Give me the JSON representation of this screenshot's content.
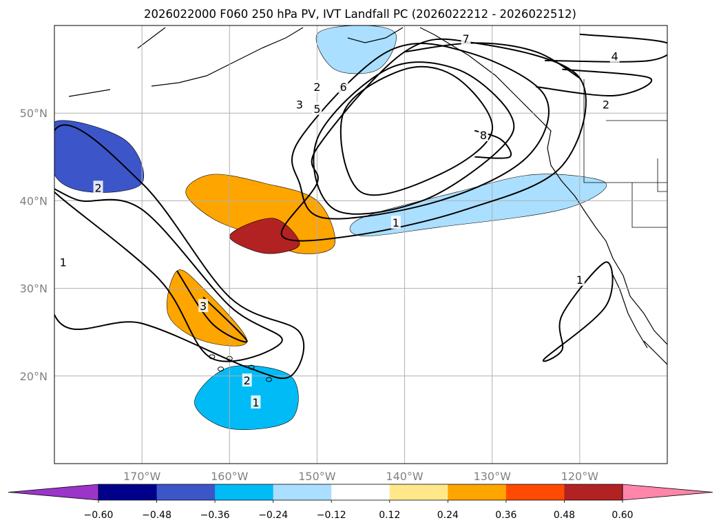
{
  "chart_data": {
    "type": "map-contour",
    "title": "2026022000 F060 250 hPa PV, IVT Landfall PC (2026022212 - 2026022512)",
    "lon_range": [
      -180,
      -110
    ],
    "lat_range": [
      10,
      60
    ],
    "lon_ticks": [
      -170,
      -160,
      -150,
      -140,
      -130,
      -120
    ],
    "lon_tick_labels": [
      "170°W",
      "160°W",
      "150°W",
      "140°W",
      "130°W",
      "120°W"
    ],
    "lat_ticks": [
      20,
      30,
      40,
      50
    ],
    "lat_tick_labels": [
      "20°N",
      "30°N",
      "40°N",
      "50°N"
    ],
    "grid": true,
    "colorbar": {
      "orientation": "horizontal",
      "extend": "both",
      "levels": [
        -0.6,
        -0.48,
        -0.36,
        -0.24,
        -0.12,
        0.12,
        0.24,
        0.36,
        0.48,
        0.6
      ],
      "tick_labels": [
        "−0.60",
        "−0.48",
        "−0.36",
        "−0.24",
        "−0.12",
        "0.12",
        "0.24",
        "0.36",
        "0.48",
        "0.60"
      ],
      "colors": [
        "#9b35c9",
        "#00008b",
        "#3c55c8",
        "#00bbf5",
        "#aadfff",
        "#ffffff",
        "#ffe88a",
        "#ffa500",
        "#ff4a00",
        "#b22222",
        "#ff85aa"
      ]
    },
    "shaded_features": [
      {
        "name": "northeast pacific positive max",
        "level": 0.24,
        "lon_lat": [
          [
            -156,
            42
          ],
          [
            -150,
            40
          ],
          [
            -148,
            35
          ],
          [
            -152,
            34
          ],
          [
            -157,
            36
          ],
          [
            -162,
            38
          ],
          [
            -165,
            41
          ],
          [
            -162,
            43
          ]
        ]
      },
      {
        "name": "northeast pacific positive core",
        "level": 0.48,
        "lon_lat": [
          [
            -155,
            38
          ],
          [
            -152,
            35
          ],
          [
            -156,
            34
          ],
          [
            -160,
            36
          ]
        ]
      },
      {
        "name": "jet-stream negative band",
        "level": -0.24,
        "lon_lat": [
          [
            -145,
            38
          ],
          [
            -134,
            41
          ],
          [
            -125,
            43
          ],
          [
            -117,
            42
          ],
          [
            -122,
            39
          ],
          [
            -136,
            37
          ],
          [
            -145,
            36
          ]
        ]
      },
      {
        "name": "gulf of alaska negative",
        "level": -0.24,
        "lon_lat": [
          [
            -150,
            59
          ],
          [
            -145,
            60
          ],
          [
            -141,
            59
          ],
          [
            -143,
            55
          ],
          [
            -148,
            55
          ]
        ]
      },
      {
        "name": "western negative",
        "level": -0.48,
        "lon_lat": [
          [
            -180,
            49
          ],
          [
            -172,
            47
          ],
          [
            -170,
            42
          ],
          [
            -176,
            41
          ],
          [
            -180,
            43
          ]
        ]
      },
      {
        "name": "hawaii negative",
        "level": -0.36,
        "lon_lat": [
          [
            -160,
            21
          ],
          [
            -153,
            20
          ],
          [
            -153,
            15
          ],
          [
            -160,
            14
          ],
          [
            -164,
            17
          ]
        ]
      },
      {
        "name": "subtropical positive",
        "level": 0.24,
        "lon_lat": [
          [
            -166,
            32
          ],
          [
            -163,
            30
          ],
          [
            -158,
            24
          ],
          [
            -163,
            24
          ],
          [
            -167,
            27
          ]
        ]
      }
    ],
    "contours": [
      {
        "label": "1",
        "lon_lat": [
          [
            -180,
            27
          ],
          [
            -170,
            26
          ],
          [
            -158,
            21
          ],
          [
            -153,
            20
          ],
          [
            -152,
            25
          ],
          [
            -160,
            29
          ],
          [
            -170,
            42
          ],
          [
            -180,
            48
          ]
        ]
      },
      {
        "label": "2",
        "lon_lat": [
          [
            -177,
            40
          ],
          [
            -170,
            39
          ],
          [
            -160,
            28
          ],
          [
            -154,
            24
          ],
          [
            -162,
            22
          ],
          [
            -168,
            31
          ],
          [
            -180,
            41
          ]
        ]
      },
      {
        "label": "3",
        "lon_lat": [
          [
            -166,
            32
          ],
          [
            -162,
            26
          ],
          [
            -158,
            24
          ],
          [
            -163,
            29
          ]
        ]
      },
      {
        "label": "1",
        "lon_lat": [
          [
            -150,
            46
          ],
          [
            -140,
            57
          ],
          [
            -132,
            58
          ],
          [
            -120,
            54
          ],
          [
            -122,
            44
          ],
          [
            -133,
            39
          ],
          [
            -146,
            36
          ],
          [
            -154,
            36
          ],
          [
            -150,
            42
          ]
        ]
      },
      {
        "label": "2",
        "lon_lat": [
          [
            -152,
            47
          ],
          [
            -142,
            57
          ],
          [
            -133,
            57
          ],
          [
            -124,
            52
          ],
          [
            -126,
            45
          ],
          [
            -136,
            40
          ],
          [
            -149,
            38
          ],
          [
            -152,
            42
          ]
        ]
      },
      {
        "label": "5",
        "lon_lat": [
          [
            -150,
            47
          ],
          [
            -142,
            55
          ],
          [
            -134,
            55
          ],
          [
            -128,
            50
          ],
          [
            -129,
            46
          ],
          [
            -138,
            40
          ],
          [
            -148,
            39
          ]
        ]
      },
      {
        "label": "6",
        "lon_lat": [
          [
            -147,
            50
          ],
          [
            -140,
            55
          ],
          [
            -134,
            54
          ],
          [
            -130,
            48
          ],
          [
            -136,
            43
          ],
          [
            -145,
            41
          ]
        ]
      },
      {
        "label": "8",
        "lon_lat": [
          [
            -132,
            48
          ],
          [
            -129,
            47
          ],
          [
            -128,
            45
          ],
          [
            -132,
            45
          ]
        ]
      },
      {
        "label": "7",
        "lon_lat": [
          [
            -140,
            57
          ],
          [
            -132,
            58
          ],
          [
            -125,
            57
          ],
          [
            -120,
            54
          ]
        ]
      },
      {
        "label": "4",
        "lon_lat": [
          [
            -124,
            56
          ],
          [
            -112,
            56
          ],
          [
            -110,
            58
          ],
          [
            -120,
            59
          ]
        ]
      },
      {
        "label": "2",
        "lon_lat": [
          [
            -125,
            53
          ],
          [
            -116,
            52
          ],
          [
            -112,
            54
          ],
          [
            -122,
            55
          ]
        ]
      },
      {
        "label": "1",
        "lon_lat": [
          [
            -124,
            22
          ],
          [
            -117,
            28
          ],
          [
            -117,
            33
          ],
          [
            -122,
            27
          ],
          [
            -122,
            23
          ]
        ]
      }
    ],
    "contour_labels": [
      {
        "text": "1",
        "lon": -141,
        "lat": 37.5
      },
      {
        "text": "2",
        "lon": -150,
        "lat": 53
      },
      {
        "text": "3",
        "lon": -152,
        "lat": 51
      },
      {
        "text": "5",
        "lon": -150,
        "lat": 50.5
      },
      {
        "text": "6",
        "lon": -147,
        "lat": 53
      },
      {
        "text": "7",
        "lon": -133,
        "lat": 58.5
      },
      {
        "text": "8",
        "lon": -131,
        "lat": 47.5
      },
      {
        "text": "4",
        "lon": -116,
        "lat": 56.5
      },
      {
        "text": "2",
        "lon": -117,
        "lat": 51
      },
      {
        "text": "1",
        "lon": -120,
        "lat": 31
      },
      {
        "text": "2",
        "lon": -175,
        "lat": 41.5
      },
      {
        "text": "1",
        "lon": -179,
        "lat": 33
      },
      {
        "text": "3",
        "lon": -163,
        "lat": 28
      },
      {
        "text": "2",
        "lon": -158,
        "lat": 19.5
      },
      {
        "text": "1",
        "lon": -157,
        "lat": 17
      }
    ]
  }
}
